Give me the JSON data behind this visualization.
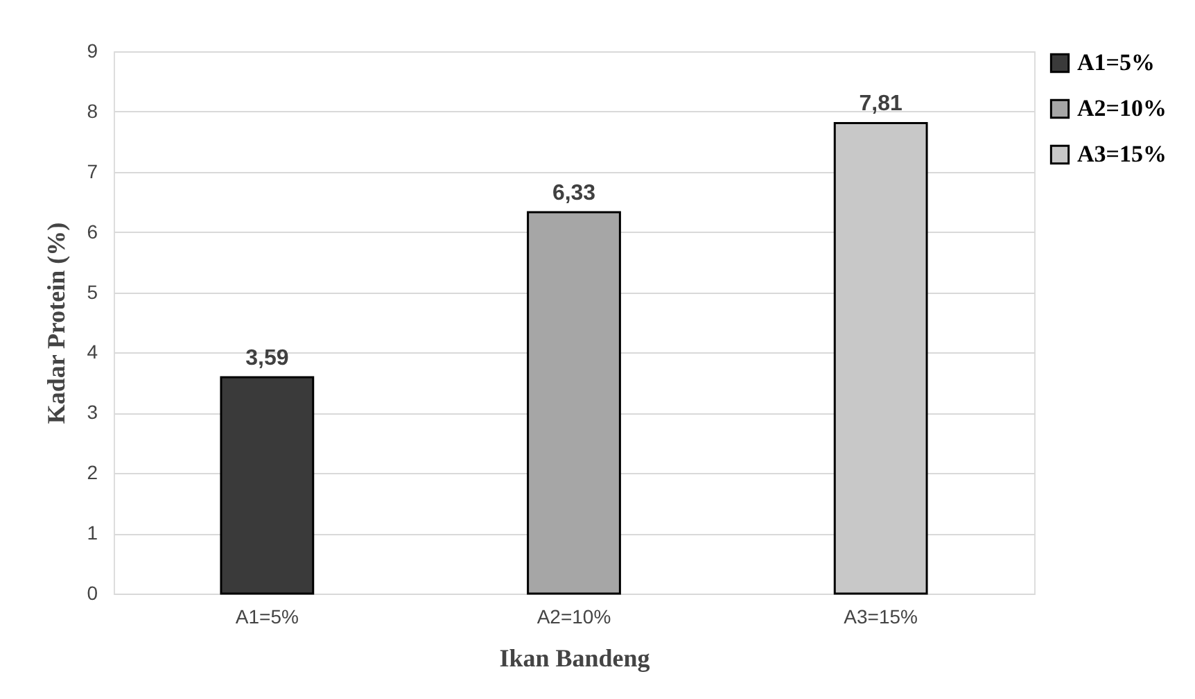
{
  "chart_data": {
    "type": "bar",
    "xlabel": "Ikan Bandeng",
    "ylabel": "Kadar Protein (%)",
    "categories": [
      "A1=5%",
      "A2=10%",
      "A3=15%"
    ],
    "series": [
      {
        "name": "A1=5%",
        "color": "#3a3a3a",
        "values": [
          3.59,
          null,
          null
        ],
        "value_labels": [
          "3,59",
          null,
          null
        ]
      },
      {
        "name": "A2=10%",
        "color": "#a6a6a6",
        "values": [
          null,
          6.33,
          null
        ],
        "value_labels": [
          null,
          "6,33",
          null
        ]
      },
      {
        "name": "A3=15%",
        "color": "#c8c8c8",
        "values": [
          null,
          null,
          7.81
        ],
        "value_labels": [
          null,
          null,
          "7,81"
        ]
      }
    ],
    "stacked": true,
    "ylim": [
      0,
      9
    ],
    "yticks": [
      0,
      1,
      2,
      3,
      4,
      5,
      6,
      7,
      8,
      9
    ],
    "grid": "y",
    "legend": "right"
  }
}
